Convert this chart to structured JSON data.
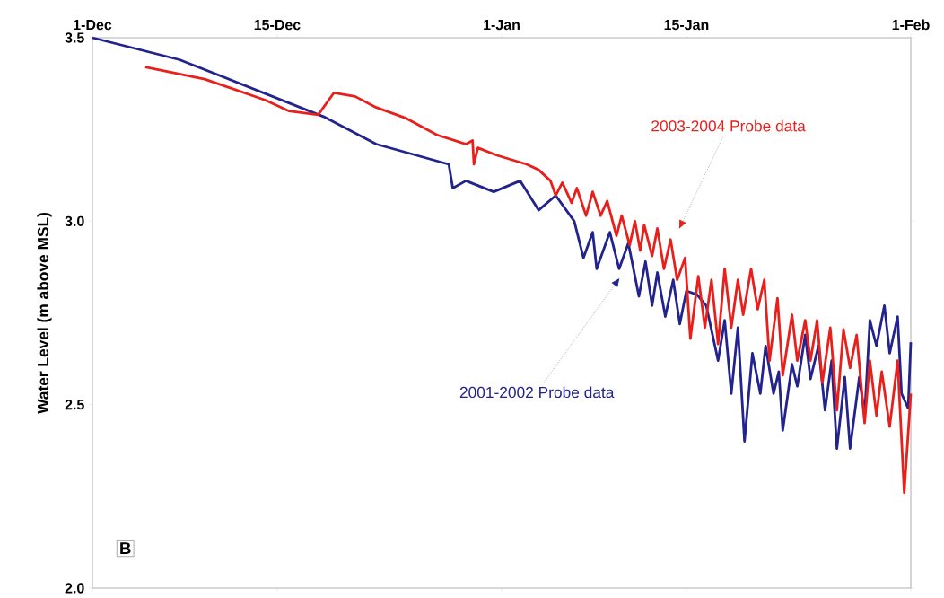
{
  "chart_data": {
    "type": "line",
    "ylabel": "Water Level (m above MSL)",
    "xlim": [
      "2001-12-01",
      "2002-02-01"
    ],
    "ylim": [
      2.0,
      3.5
    ],
    "xticks": [
      {
        "value": "2001-12-01",
        "label": "1-Dec"
      },
      {
        "value": "2001-12-15",
        "label": "15-Dec"
      },
      {
        "value": "2002-01-01",
        "label": "1-Jan"
      },
      {
        "value": "2002-01-15",
        "label": "15-Jan"
      },
      {
        "value": "2002-02-01",
        "label": "1-Feb"
      }
    ],
    "yticks": [
      {
        "value": 2.0,
        "label": "2.0"
      },
      2.5,
      {
        "value": 3.0,
        "label": "3.0"
      },
      3.5
    ],
    "grid": false,
    "marker": "none",
    "line_style": "solid",
    "series": [
      {
        "color": "#23238e",
        "x": [
          "2001-12-01T00:00",
          "2001-12-07T14:24",
          "2001-12-18T12:00",
          "2001-12-22T12:00",
          "2001-12-28T00:00",
          "2001-12-28T07:12",
          "2001-12-29T07:12",
          "2001-12-31T09:36",
          "2002-01-02T09:36",
          "2002-01-03T19:12",
          "2002-01-05T02:24",
          "2002-01-06T12:00",
          "2002-01-07T04:48",
          "2002-01-07T21:36",
          "2002-01-08T04:48",
          "2002-01-09T04:48",
          "2002-01-09T21:36",
          "2002-01-10T14:24",
          "2002-01-11T09:36",
          "2002-01-11T21:36",
          "2002-01-12T09:36",
          "2002-01-12T19:12",
          "2002-01-13T09:36",
          "2002-01-14T00:00",
          "2002-01-14T12:00",
          "2002-01-15T00:00",
          "2002-01-15T19:12",
          "2002-01-16T12:00",
          "2002-01-17T09:36",
          "2002-01-17T21:36",
          "2002-01-18T09:36",
          "2002-01-18T21:36",
          "2002-01-19T09:36",
          "2002-01-20T00:00",
          "2002-01-20T14:24",
          "2002-01-21T00:00",
          "2002-01-21T14:24",
          "2002-01-22T00:00",
          "2002-01-22T07:12",
          "2002-01-23T00:00",
          "2002-01-23T09:36",
          "2002-01-24T00:00",
          "2002-01-24T09:36",
          "2002-01-25T00:00",
          "2002-01-25T12:00",
          "2002-01-26T00:00",
          "2002-01-26T09:36",
          "2002-01-27T00:00",
          "2002-01-27T09:36",
          "2002-01-28T02:24",
          "2002-01-28T12:00",
          "2002-01-28T21:36",
          "2002-01-29T09:36",
          "2002-01-30T00:00",
          "2002-01-30T09:36",
          "2002-01-31T00:00",
          "2002-01-31T07:12",
          "2002-01-31T19:12",
          "2002-02-01T00:00"
        ],
        "values": [
          3.5,
          3.44,
          3.285,
          3.21,
          3.155,
          3.09,
          3.11,
          3.08,
          3.11,
          3.03,
          3.07,
          3.0,
          2.9,
          2.97,
          2.87,
          2.97,
          2.87,
          2.94,
          2.795,
          2.89,
          2.77,
          2.86,
          2.74,
          2.84,
          2.72,
          2.81,
          2.8,
          2.77,
          2.62,
          2.73,
          2.53,
          2.71,
          2.4,
          2.64,
          2.53,
          2.66,
          2.53,
          2.59,
          2.43,
          2.61,
          2.55,
          2.69,
          2.57,
          2.66,
          2.485,
          2.62,
          2.38,
          2.575,
          2.38,
          2.575,
          2.47,
          2.73,
          2.66,
          2.77,
          2.64,
          2.74,
          2.53,
          2.49,
          2.67
        ]
      },
      {
        "color": "#e8201c",
        "x": [
          "2001-12-05T00:00",
          "2001-12-09T12:00",
          "2001-12-14T02:24",
          "2001-12-15T21:36",
          "2001-12-18T02:24",
          "2001-12-19T07:12",
          "2001-12-20T21:36",
          "2001-12-22T12:00",
          "2001-12-24T19:12",
          "2001-12-27T02:24",
          "2001-12-29T07:12",
          "2001-12-29T19:12",
          "2001-12-29T21:36",
          "2001-12-30T04:48",
          "2001-12-31T14:24",
          "2002-01-02T21:36",
          "2002-01-03T19:12",
          "2002-01-04T16:48",
          "2002-01-05T02:24",
          "2002-01-05T14:24",
          "2002-01-06T07:12",
          "2002-01-06T16:48",
          "2002-01-07T09:36",
          "2002-01-07T21:36",
          "2002-01-08T12:00",
          "2002-01-09T00:00",
          "2002-01-09T16:48",
          "2002-01-10T02:24",
          "2002-01-10T16:48",
          "2002-01-11T02:24",
          "2002-01-11T12:00",
          "2002-01-11T19:12",
          "2002-01-12T09:36",
          "2002-01-12T19:12",
          "2002-01-13T07:12",
          "2002-01-13T19:12",
          "2002-01-14T07:12",
          "2002-01-14T21:36",
          "2002-01-15T07:12",
          "2002-01-15T21:36",
          "2002-01-16T09:36",
          "2002-01-16T21:36",
          "2002-01-17T09:36",
          "2002-01-17T21:36",
          "2002-01-18T09:36",
          "2002-01-18T21:36",
          "2002-01-19T07:12",
          "2002-01-19T21:36",
          "2002-01-20T09:36",
          "2002-01-20T21:36",
          "2002-01-21T07:12",
          "2002-01-21T21:36",
          "2002-01-22T07:12",
          "2002-01-23T00:00",
          "2002-01-23T09:36",
          "2002-01-24T00:00",
          "2002-01-24T09:36",
          "2002-01-24T21:36",
          "2002-01-25T07:12",
          "2002-01-25T21:36",
          "2002-01-26T09:36",
          "2002-01-26T21:36",
          "2002-01-27T09:36",
          "2002-01-27T21:36",
          "2002-01-28T12:00",
          "2002-01-28T21:36",
          "2002-01-29T09:36",
          "2002-01-29T19:12",
          "2002-01-30T09:36",
          "2002-01-31T00:00",
          "2002-01-31T12:00",
          "2002-02-01T00:00"
        ],
        "values": [
          3.42,
          3.387,
          3.33,
          3.3,
          3.29,
          3.35,
          3.34,
          3.31,
          3.28,
          3.235,
          3.21,
          3.22,
          3.155,
          3.2,
          3.18,
          3.155,
          3.14,
          3.11,
          3.07,
          3.105,
          3.05,
          3.09,
          3.015,
          3.08,
          3.015,
          3.055,
          2.96,
          3.015,
          2.935,
          3.0,
          2.92,
          2.99,
          2.905,
          2.98,
          2.87,
          2.95,
          2.84,
          2.9,
          2.68,
          2.85,
          2.71,
          2.84,
          2.665,
          2.87,
          2.71,
          2.84,
          2.745,
          2.87,
          2.76,
          2.84,
          2.62,
          2.79,
          2.58,
          2.745,
          2.62,
          2.73,
          2.62,
          2.73,
          2.56,
          2.71,
          2.485,
          2.705,
          2.6,
          2.69,
          2.45,
          2.62,
          2.47,
          2.59,
          2.44,
          2.62,
          2.26,
          2.53
        ]
      }
    ],
    "annotations": [
      "2003-2004 Probe data",
      "2001-2002 Probe data",
      "B"
    ]
  }
}
